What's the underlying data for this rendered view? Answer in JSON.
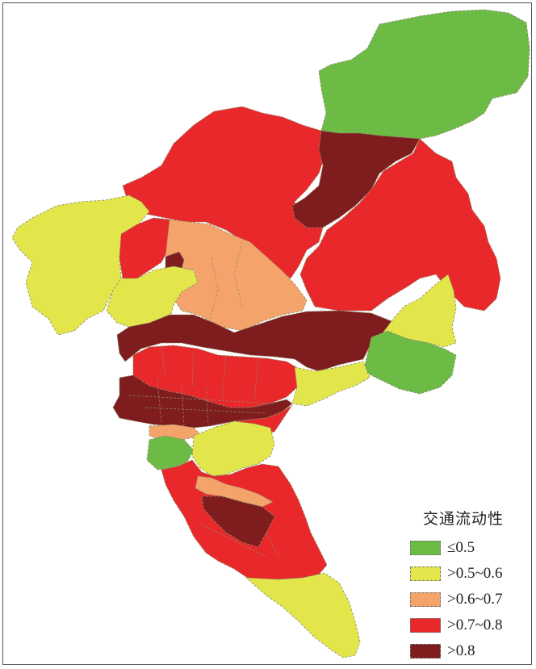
{
  "legend": {
    "title": "交通流动性",
    "items": [
      {
        "label": "≤0.5",
        "color": "#6cbb45"
      },
      {
        "label": ">0.5~0.6",
        "color": "#e3e64b"
      },
      {
        "label": ">0.6~0.7",
        "color": "#f4a46a"
      },
      {
        "label": ">0.7~0.8",
        "color": "#e8282a"
      },
      {
        "label": ">0.8",
        "color": "#7f1d1e"
      }
    ]
  }
}
